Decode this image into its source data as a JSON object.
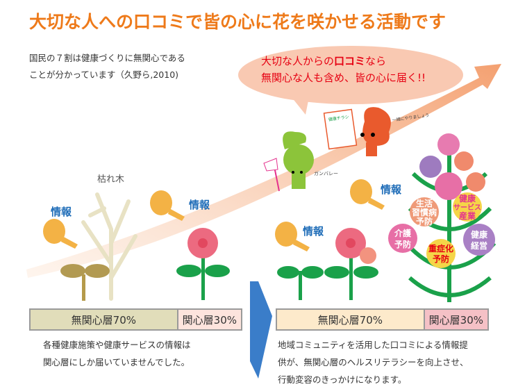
{
  "title": "大切な人への口コミで皆の心に花を咲かせる活動です",
  "intro": {
    "line1": "国民の７割は健康づくりに無関心である",
    "line2": "ことが分かっています（久野ら,2010)"
  },
  "bubble": {
    "line1_pre": "大切な人からの",
    "line1_bold": "口コミ",
    "line1_post": "なら",
    "line2": "無関心な人も含め、皆の心に届く!!"
  },
  "characters": {
    "flyer_title": "健康チラシ",
    "green_speech": "ガンバレー",
    "red_speech": "一緒にやりましょう"
  },
  "dead_tree_label": "枯れ木",
  "info_label": "情報",
  "flower_labels": {
    "lifestyle": [
      "生活",
      "習慣病",
      "予防"
    ],
    "industry": [
      "健康",
      "サービス",
      "産業"
    ],
    "care": [
      "介護",
      "予防"
    ],
    "severe": [
      "重症化",
      "予防"
    ],
    "management": [
      "健康",
      "経営"
    ]
  },
  "before": {
    "bar": {
      "uninterested": "無関心層70%",
      "interested": "関心層30%",
      "uninterested_pct": 70,
      "interested_pct": 30
    },
    "caption": [
      "各種健康施策や健康サービスの情報は",
      "関心層にしか届いていませんでした。"
    ]
  },
  "after": {
    "bar": {
      "uninterested": "無関心層70%",
      "interested": "関心層30%",
      "uninterested_pct": 70,
      "interested_pct": 30
    },
    "caption": [
      "地域コミュニティを活用した口コミによる情報提",
      "供が、無関心層のヘルスリテラシーを向上させ、",
      "行動変容のきっかけになります。"
    ]
  },
  "colors": {
    "title": "#ee7a1a",
    "bubble_text": "#e60012",
    "info": "#1f6db8",
    "arrow": "#3a7dc9",
    "bar_before_uninterested": "#e1ddba",
    "bar_before_interested": "#fde4dd",
    "bar_after_uninterested": "#fdeacb",
    "bar_after_interested": "#f5c1c6"
  }
}
